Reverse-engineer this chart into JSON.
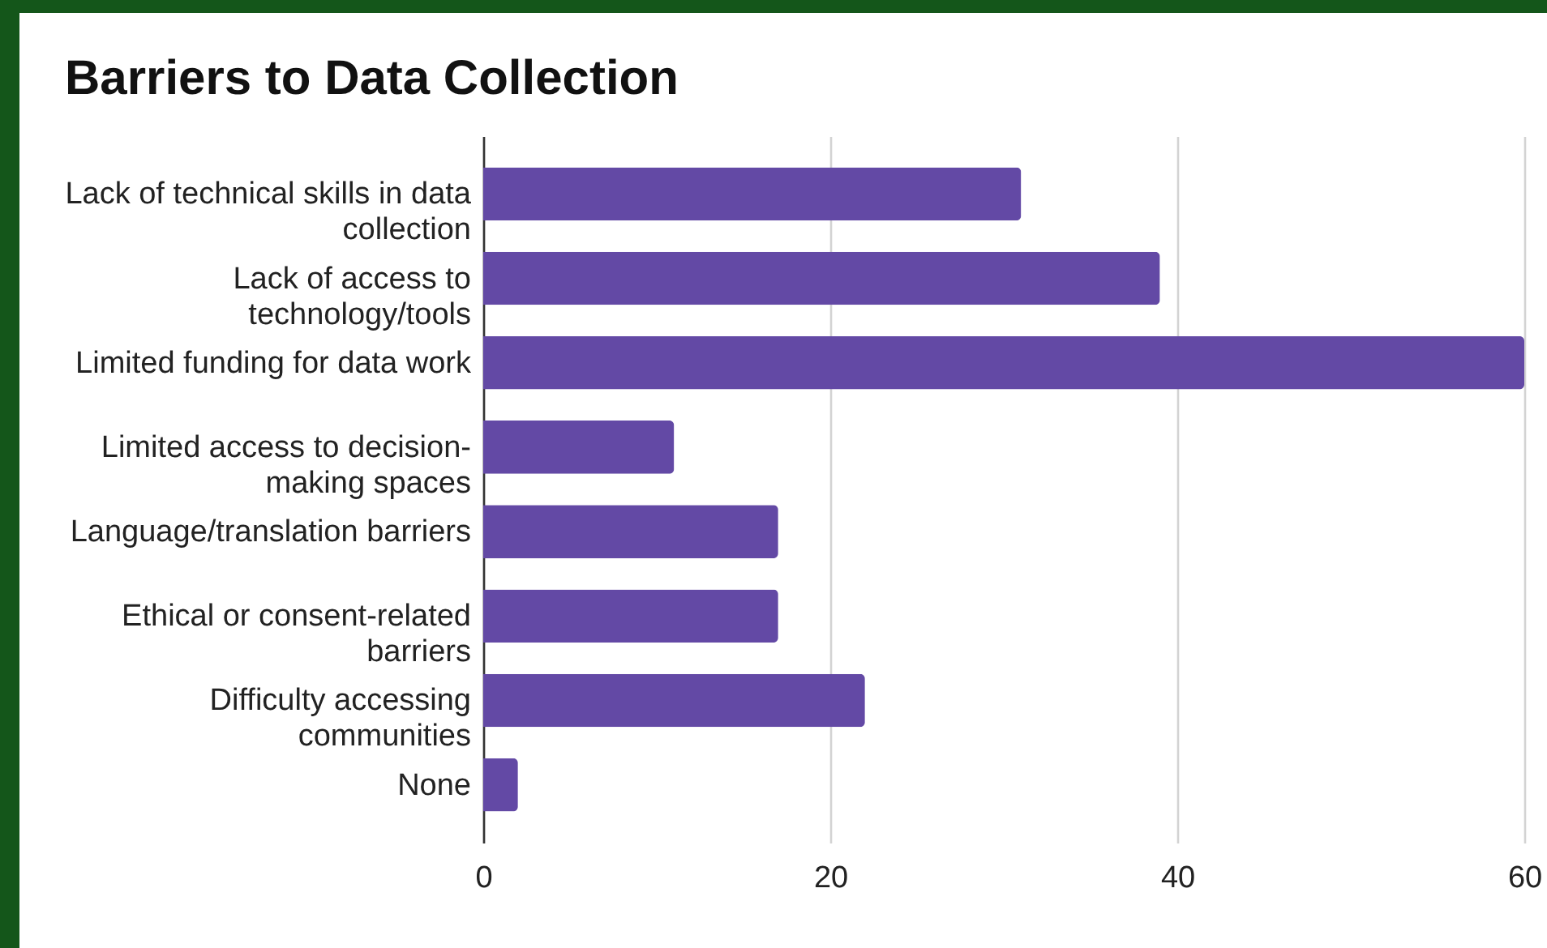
{
  "chart_data": {
    "type": "bar",
    "orientation": "horizontal",
    "title": "Barriers to Data Collection",
    "categories": [
      "Lack of technical skills in data collection",
      "Lack of access to technology/tools",
      "Limited funding for data work",
      "Limited access to decision-making spaces",
      "Language/translation barriers",
      "Ethical or consent-related barriers",
      "Difficulty accessing communities",
      "None"
    ],
    "values": [
      31,
      39,
      60,
      11,
      17,
      17,
      22,
      2
    ],
    "color": "#6349a5",
    "xlim": [
      0,
      60
    ],
    "xticks": [
      0,
      20,
      40,
      60
    ],
    "grid": "x"
  }
}
